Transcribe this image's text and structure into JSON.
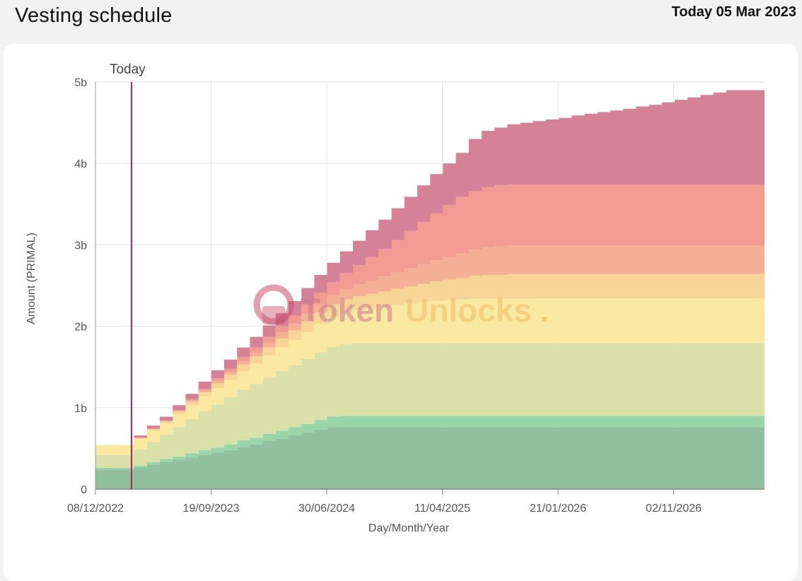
{
  "header": {
    "title": "Vesting schedule",
    "today": "Today 05 Mar 2023"
  },
  "watermark": {
    "brand_bold": "Token",
    "brand_light": "Unlocks",
    "dot": "."
  },
  "chart_data": {
    "type": "area",
    "stacked": true,
    "step": true,
    "xlabel": "Day/Month/Year",
    "ylabel": "Amount (PRIMAL)",
    "x_ticks": [
      "08/12/2022",
      "19/09/2023",
      "30/06/2024",
      "11/04/2025",
      "21/01/2026",
      "02/11/2026"
    ],
    "y_ticks": [
      {
        "value": 0,
        "label": "0"
      },
      {
        "value": 1,
        "label": "1b"
      },
      {
        "value": 2,
        "label": "2b"
      },
      {
        "value": 3,
        "label": "3b"
      },
      {
        "value": 4,
        "label": "4b"
      },
      {
        "value": 5,
        "label": "5b"
      }
    ],
    "ylim": [
      0,
      5
    ],
    "y_unit": "billion PRIMAL",
    "grid": true,
    "legend": "none",
    "today_marker": {
      "label": "Today",
      "date": "05/03/2023"
    },
    "x_month_offset": [
      0,
      3,
      4,
      5,
      6,
      7,
      8,
      9,
      10,
      11,
      12,
      13,
      14,
      15,
      16,
      17,
      18,
      19,
      20,
      21,
      22,
      23,
      24,
      25,
      26,
      27,
      28,
      29,
      30,
      31,
      32,
      33,
      34,
      35,
      36,
      37,
      38,
      39,
      40,
      41,
      42,
      43,
      44,
      45,
      46,
      47,
      48,
      49
    ],
    "series": [
      {
        "color": "#8fbf9f",
        "values": [
          0.24,
          0.27,
          0.3,
          0.33,
          0.36,
          0.39,
          0.42,
          0.45,
          0.48,
          0.52,
          0.55,
          0.59,
          0.62,
          0.66,
          0.69,
          0.73,
          0.76,
          0.76,
          0.76,
          0.76,
          0.76,
          0.76,
          0.76,
          0.76,
          0.76,
          0.76,
          0.76,
          0.76,
          0.76,
          0.76,
          0.76,
          0.76,
          0.76,
          0.76,
          0.76,
          0.76,
          0.76,
          0.76,
          0.76,
          0.76,
          0.76,
          0.76,
          0.76,
          0.76,
          0.76,
          0.76,
          0.76,
          0.76
        ]
      },
      {
        "color": "#98d4a8",
        "values": [
          0.02,
          0.02,
          0.03,
          0.04,
          0.04,
          0.05,
          0.06,
          0.06,
          0.07,
          0.08,
          0.08,
          0.09,
          0.1,
          0.1,
          0.11,
          0.12,
          0.13,
          0.14,
          0.14,
          0.14,
          0.14,
          0.14,
          0.14,
          0.14,
          0.14,
          0.14,
          0.14,
          0.14,
          0.14,
          0.14,
          0.14,
          0.14,
          0.14,
          0.14,
          0.14,
          0.14,
          0.14,
          0.14,
          0.14,
          0.14,
          0.14,
          0.14,
          0.14,
          0.14,
          0.14,
          0.14,
          0.14,
          0.14
        ]
      },
      {
        "color": "#d9e0a6",
        "values": [
          0.16,
          0.2,
          0.25,
          0.3,
          0.36,
          0.42,
          0.48,
          0.53,
          0.58,
          0.62,
          0.66,
          0.69,
          0.73,
          0.76,
          0.8,
          0.83,
          0.86,
          0.88,
          0.89,
          0.89,
          0.89,
          0.89,
          0.89,
          0.89,
          0.89,
          0.89,
          0.89,
          0.89,
          0.89,
          0.89,
          0.89,
          0.89,
          0.89,
          0.89,
          0.89,
          0.89,
          0.89,
          0.89,
          0.89,
          0.89,
          0.89,
          0.89,
          0.89,
          0.89,
          0.89,
          0.89,
          0.89,
          0.89
        ]
      },
      {
        "color": "#fbe99f",
        "values": [
          0.12,
          0.13,
          0.14,
          0.14,
          0.16,
          0.17,
          0.18,
          0.2,
          0.21,
          0.23,
          0.25,
          0.27,
          0.29,
          0.31,
          0.33,
          0.35,
          0.37,
          0.39,
          0.41,
          0.43,
          0.45,
          0.47,
          0.49,
          0.51,
          0.52,
          0.53,
          0.54,
          0.55,
          0.55,
          0.55,
          0.55,
          0.55,
          0.55,
          0.55,
          0.55,
          0.55,
          0.55,
          0.55,
          0.55,
          0.55,
          0.55,
          0.55,
          0.55,
          0.55,
          0.55,
          0.55,
          0.55,
          0.55
        ]
      },
      {
        "color": "#f6d494",
        "values": [
          0.0,
          0.01,
          0.02,
          0.02,
          0.03,
          0.04,
          0.05,
          0.06,
          0.07,
          0.08,
          0.09,
          0.1,
          0.11,
          0.12,
          0.13,
          0.14,
          0.15,
          0.16,
          0.17,
          0.18,
          0.19,
          0.2,
          0.21,
          0.22,
          0.24,
          0.25,
          0.26,
          0.28,
          0.29,
          0.29,
          0.3,
          0.3,
          0.3,
          0.3,
          0.3,
          0.3,
          0.3,
          0.3,
          0.3,
          0.3,
          0.3,
          0.3,
          0.3,
          0.3,
          0.3,
          0.3,
          0.3,
          0.3
        ]
      },
      {
        "color": "#f3ae92",
        "values": [
          0.0,
          0.0,
          0.0,
          0.01,
          0.01,
          0.02,
          0.02,
          0.03,
          0.03,
          0.04,
          0.05,
          0.06,
          0.07,
          0.08,
          0.09,
          0.1,
          0.11,
          0.12,
          0.14,
          0.16,
          0.18,
          0.2,
          0.22,
          0.24,
          0.26,
          0.28,
          0.3,
          0.32,
          0.34,
          0.35,
          0.35,
          0.35,
          0.35,
          0.35,
          0.35,
          0.35,
          0.35,
          0.35,
          0.35,
          0.35,
          0.35,
          0.35,
          0.35,
          0.35,
          0.35,
          0.35,
          0.35,
          0.35
        ]
      },
      {
        "color": "#f19990",
        "values": [
          0.0,
          0.0,
          0.0,
          0.0,
          0.01,
          0.01,
          0.02,
          0.03,
          0.04,
          0.05,
          0.06,
          0.07,
          0.08,
          0.1,
          0.12,
          0.14,
          0.16,
          0.2,
          0.24,
          0.29,
          0.34,
          0.4,
          0.46,
          0.52,
          0.58,
          0.64,
          0.7,
          0.72,
          0.74,
          0.75,
          0.75,
          0.75,
          0.75,
          0.75,
          0.75,
          0.75,
          0.75,
          0.75,
          0.75,
          0.75,
          0.75,
          0.75,
          0.75,
          0.75,
          0.75,
          0.75,
          0.75,
          0.75
        ]
      },
      {
        "color": "#d47f96",
        "values": [
          0.0,
          0.03,
          0.04,
          0.05,
          0.06,
          0.07,
          0.09,
          0.1,
          0.11,
          0.12,
          0.13,
          0.14,
          0.16,
          0.18,
          0.2,
          0.22,
          0.24,
          0.27,
          0.3,
          0.33,
          0.36,
          0.39,
          0.42,
          0.45,
          0.48,
          0.51,
          0.54,
          0.64,
          0.69,
          0.71,
          0.74,
          0.76,
          0.78,
          0.8,
          0.82,
          0.85,
          0.87,
          0.89,
          0.91,
          0.93,
          0.96,
          0.98,
          1.01,
          1.04,
          1.07,
          1.1,
          1.13,
          1.16
        ]
      }
    ]
  }
}
